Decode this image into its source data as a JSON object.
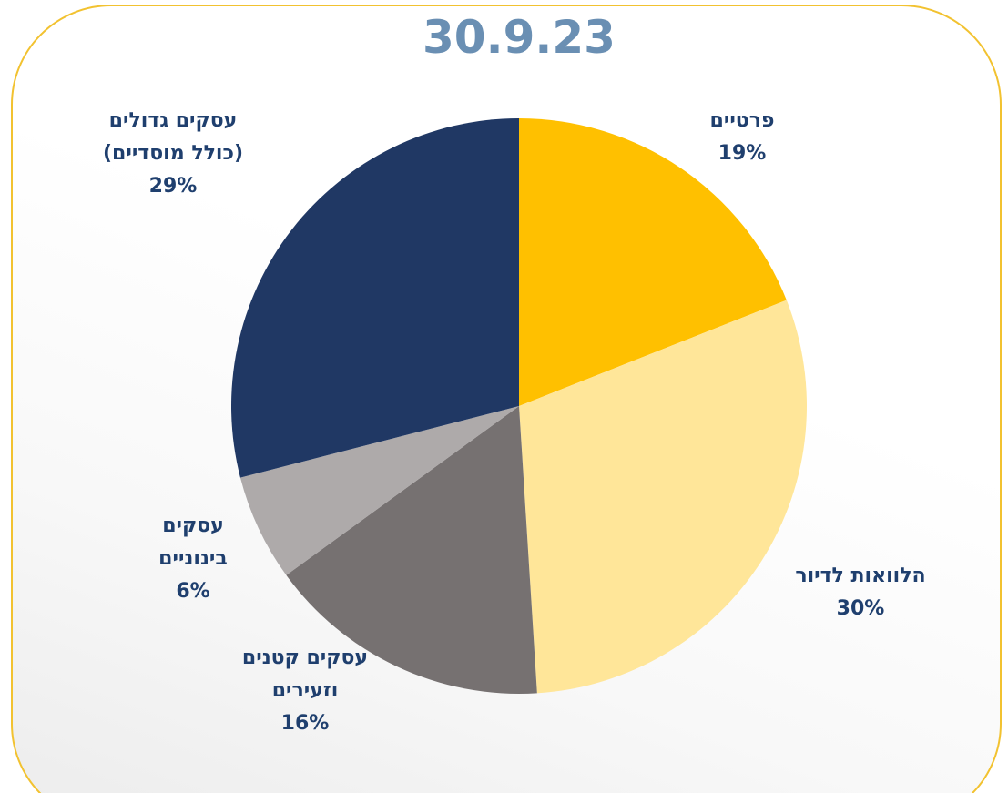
{
  "chart_data": {
    "type": "pie",
    "title": "30.9.23",
    "categories": [
      "פרטיים",
      "הלוואות לדיור",
      "עסקים קטנים וזעירים",
      "עסקים בינוניים",
      "עסקים גדולים (כולל מוסדיים)"
    ],
    "values": [
      19,
      30,
      16,
      6,
      29
    ],
    "value_labels": [
      "19%",
      "30%",
      "16%",
      "6%",
      "29%"
    ],
    "colors": [
      "#ffc000",
      "#ffe699",
      "#767171",
      "#aeaaaa",
      "#203864"
    ]
  }
}
